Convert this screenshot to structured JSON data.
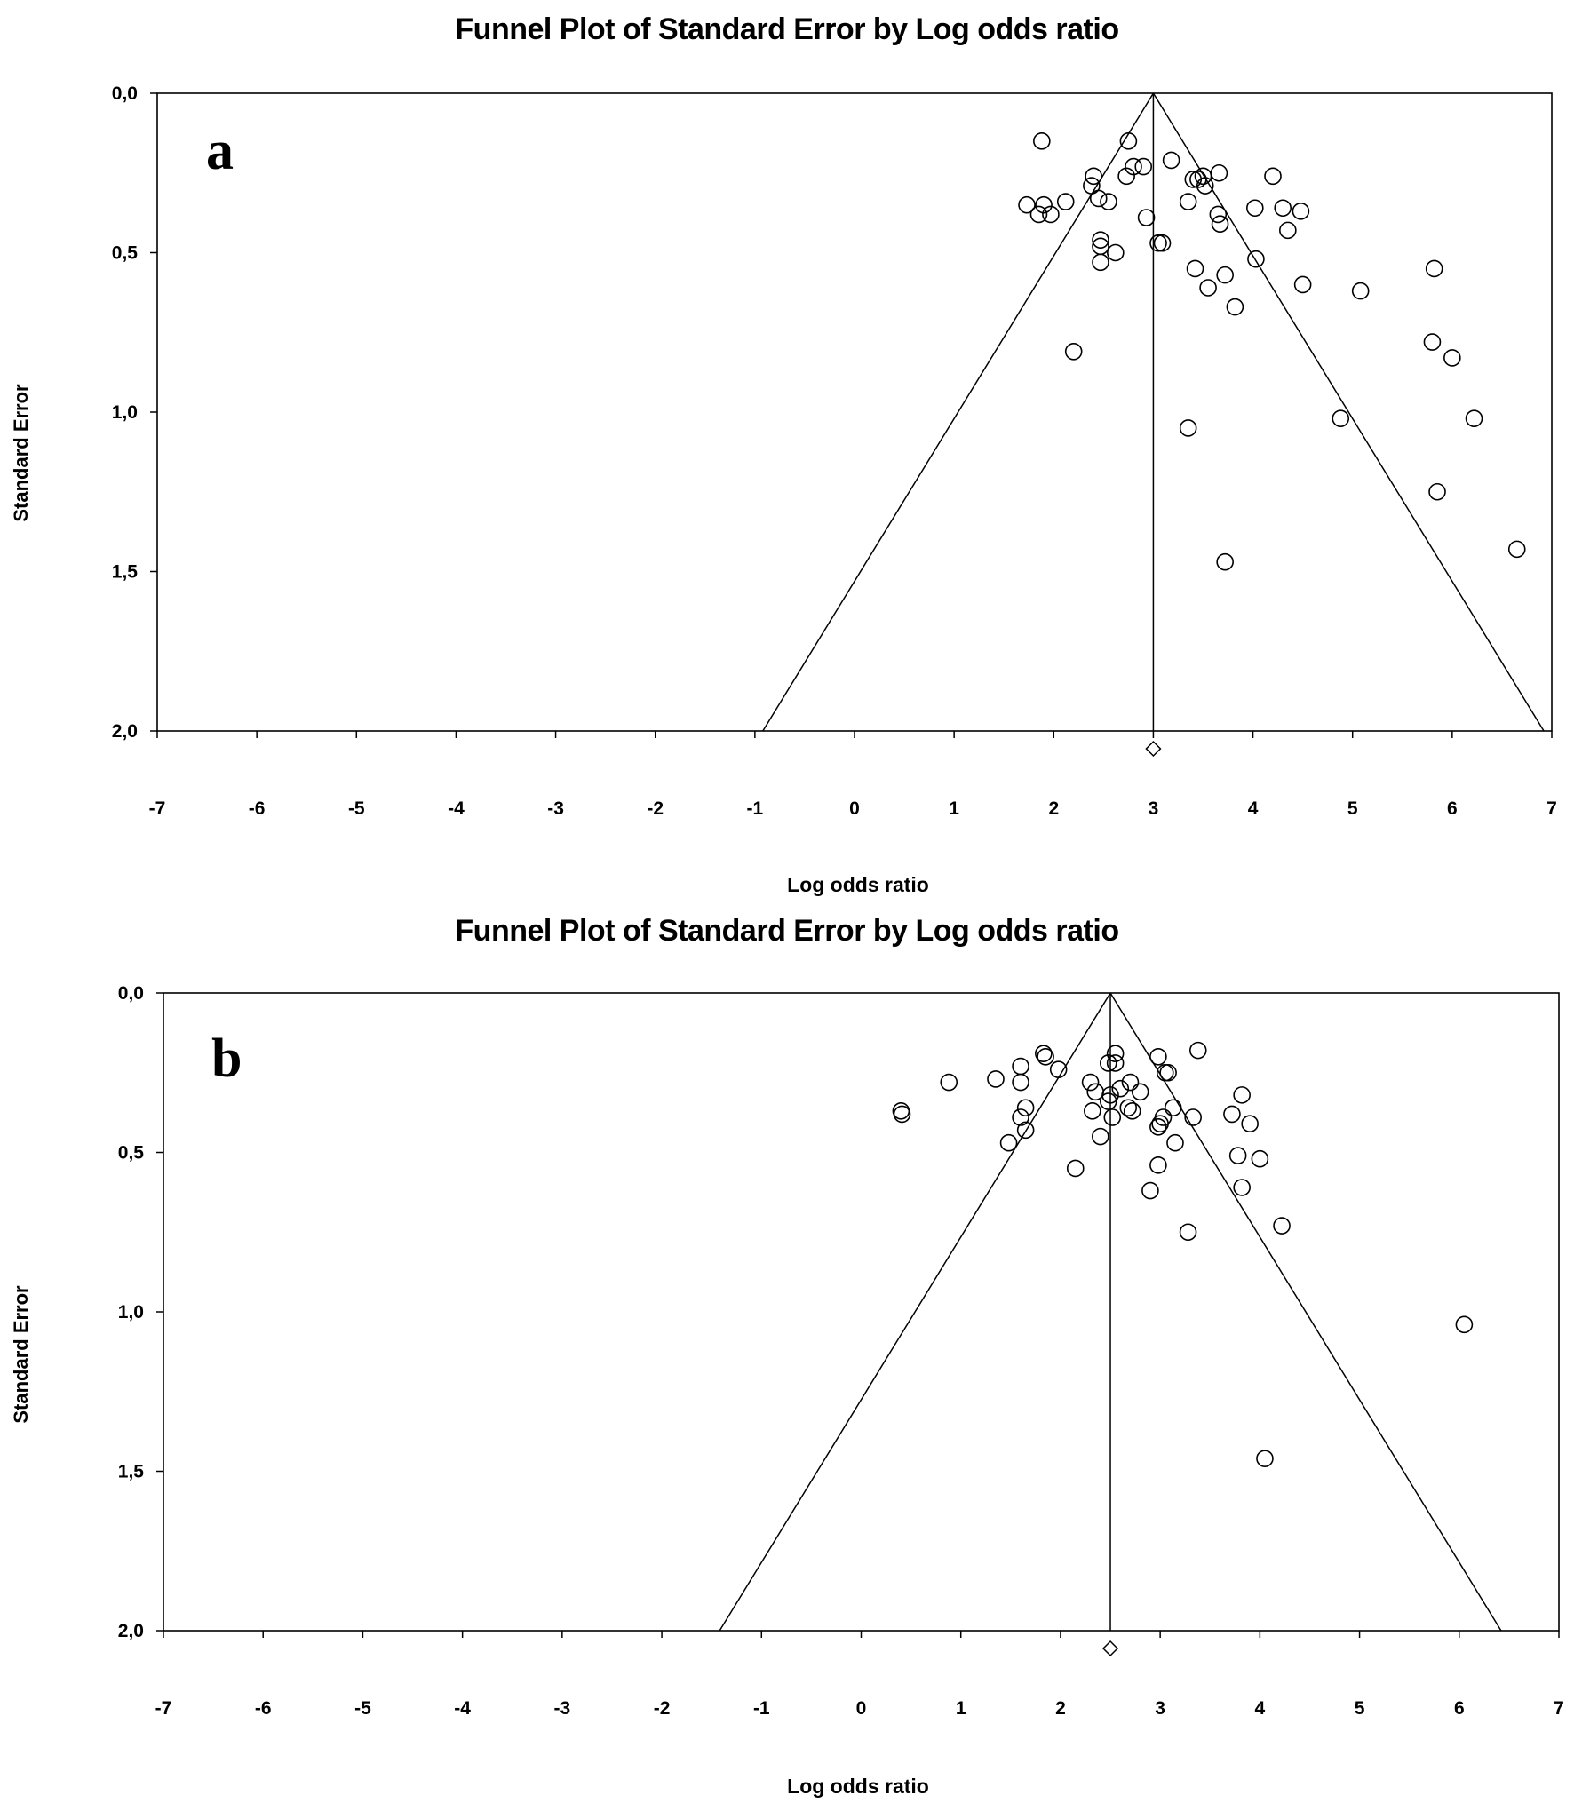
{
  "chart_data": [
    {
      "type": "scatter",
      "panel_label": "a",
      "title": "Funnel Plot of Standard Error by Log odds ratio",
      "xlabel": "Log odds ratio",
      "ylabel": "Standard Error",
      "xlim": [
        -7,
        7
      ],
      "ylim": [
        0,
        2
      ],
      "y_inverted": true,
      "xticks": [
        "-7",
        "-6",
        "-5",
        "-4",
        "-3",
        "-2",
        "-1",
        "0",
        "1",
        "2",
        "3",
        "4",
        "5",
        "6",
        "7"
      ],
      "yticks": [
        "0,0",
        "0,5",
        "1,0",
        "1,5",
        "2,0"
      ],
      "pooled_estimate": 3.0,
      "funnel_bottom_se": 2.0,
      "funnel_bottom_x": [
        -0.92,
        6.92
      ],
      "points": [
        {
          "x": 1.88,
          "y": 0.15
        },
        {
          "x": 2.75,
          "y": 0.15
        },
        {
          "x": 3.18,
          "y": 0.21
        },
        {
          "x": 2.4,
          "y": 0.26
        },
        {
          "x": 2.73,
          "y": 0.26
        },
        {
          "x": 2.8,
          "y": 0.23
        },
        {
          "x": 2.9,
          "y": 0.23
        },
        {
          "x": 3.4,
          "y": 0.27
        },
        {
          "x": 3.45,
          "y": 0.27
        },
        {
          "x": 3.5,
          "y": 0.26
        },
        {
          "x": 3.66,
          "y": 0.25
        },
        {
          "x": 4.2,
          "y": 0.26
        },
        {
          "x": 2.38,
          "y": 0.29
        },
        {
          "x": 2.45,
          "y": 0.33
        },
        {
          "x": 3.52,
          "y": 0.29
        },
        {
          "x": 1.73,
          "y": 0.35
        },
        {
          "x": 1.85,
          "y": 0.38
        },
        {
          "x": 1.9,
          "y": 0.35
        },
        {
          "x": 1.97,
          "y": 0.38
        },
        {
          "x": 2.12,
          "y": 0.34
        },
        {
          "x": 2.55,
          "y": 0.34
        },
        {
          "x": 2.93,
          "y": 0.39
        },
        {
          "x": 3.35,
          "y": 0.34
        },
        {
          "x": 3.65,
          "y": 0.38
        },
        {
          "x": 3.67,
          "y": 0.41
        },
        {
          "x": 4.02,
          "y": 0.36
        },
        {
          "x": 4.3,
          "y": 0.36
        },
        {
          "x": 4.48,
          "y": 0.37
        },
        {
          "x": 4.35,
          "y": 0.43
        },
        {
          "x": 2.47,
          "y": 0.46
        },
        {
          "x": 2.47,
          "y": 0.48
        },
        {
          "x": 2.62,
          "y": 0.5
        },
        {
          "x": 2.47,
          "y": 0.53
        },
        {
          "x": 3.05,
          "y": 0.47
        },
        {
          "x": 3.09,
          "y": 0.47
        },
        {
          "x": 4.03,
          "y": 0.52
        },
        {
          "x": 3.42,
          "y": 0.55
        },
        {
          "x": 3.72,
          "y": 0.57
        },
        {
          "x": 3.55,
          "y": 0.61
        },
        {
          "x": 3.82,
          "y": 0.67
        },
        {
          "x": 4.5,
          "y": 0.6
        },
        {
          "x": 5.08,
          "y": 0.62
        },
        {
          "x": 5.82,
          "y": 0.55
        },
        {
          "x": 2.2,
          "y": 0.81
        },
        {
          "x": 5.8,
          "y": 0.78
        },
        {
          "x": 6.0,
          "y": 0.83
        },
        {
          "x": 4.88,
          "y": 1.02
        },
        {
          "x": 6.22,
          "y": 1.02
        },
        {
          "x": 3.35,
          "y": 1.05
        },
        {
          "x": 5.85,
          "y": 1.25
        },
        {
          "x": 6.65,
          "y": 1.43
        },
        {
          "x": 3.72,
          "y": 1.47
        }
      ]
    },
    {
      "type": "scatter",
      "panel_label": "b",
      "title": "Funnel Plot of Standard Error by Log odds ratio",
      "xlabel": "Log odds ratio",
      "ylabel": "Standard Error",
      "xlim": [
        -7,
        7
      ],
      "ylim": [
        0,
        2
      ],
      "y_inverted": true,
      "xticks": [
        "-7",
        "-6",
        "-5",
        "-4",
        "-3",
        "-2",
        "-1",
        "0",
        "1",
        "2",
        "3",
        "4",
        "5",
        "6",
        "7"
      ],
      "yticks": [
        "0,0",
        "0,5",
        "1,0",
        "1,5",
        "2,0"
      ],
      "pooled_estimate": 2.5,
      "funnel_bottom_se": 2.0,
      "funnel_bottom_x": [
        -1.42,
        6.42
      ],
      "points": [
        {
          "x": 3.38,
          "y": 0.18
        },
        {
          "x": 1.83,
          "y": 0.19
        },
        {
          "x": 1.85,
          "y": 0.2
        },
        {
          "x": 2.55,
          "y": 0.19
        },
        {
          "x": 2.98,
          "y": 0.2
        },
        {
          "x": 2.48,
          "y": 0.22
        },
        {
          "x": 2.55,
          "y": 0.22
        },
        {
          "x": 1.6,
          "y": 0.23
        },
        {
          "x": 1.98,
          "y": 0.24
        },
        {
          "x": 3.05,
          "y": 0.25
        },
        {
          "x": 3.08,
          "y": 0.25
        },
        {
          "x": 1.35,
          "y": 0.27
        },
        {
          "x": 1.6,
          "y": 0.28
        },
        {
          "x": 0.88,
          "y": 0.28
        },
        {
          "x": 2.3,
          "y": 0.28
        },
        {
          "x": 2.7,
          "y": 0.28
        },
        {
          "x": 2.6,
          "y": 0.3
        },
        {
          "x": 2.35,
          "y": 0.31
        },
        {
          "x": 2.8,
          "y": 0.31
        },
        {
          "x": 2.5,
          "y": 0.32
        },
        {
          "x": 3.82,
          "y": 0.32
        },
        {
          "x": 2.48,
          "y": 0.34
        },
        {
          "x": 1.65,
          "y": 0.36
        },
        {
          "x": 2.68,
          "y": 0.36
        },
        {
          "x": 3.13,
          "y": 0.36
        },
        {
          "x": 0.4,
          "y": 0.37
        },
        {
          "x": 0.41,
          "y": 0.38
        },
        {
          "x": 2.32,
          "y": 0.37
        },
        {
          "x": 2.72,
          "y": 0.37
        },
        {
          "x": 3.72,
          "y": 0.38
        },
        {
          "x": 1.6,
          "y": 0.39
        },
        {
          "x": 2.52,
          "y": 0.39
        },
        {
          "x": 3.03,
          "y": 0.39
        },
        {
          "x": 3.33,
          "y": 0.39
        },
        {
          "x": 3.0,
          "y": 0.41
        },
        {
          "x": 2.98,
          "y": 0.42
        },
        {
          "x": 3.9,
          "y": 0.41
        },
        {
          "x": 1.65,
          "y": 0.43
        },
        {
          "x": 2.4,
          "y": 0.45
        },
        {
          "x": 1.48,
          "y": 0.47
        },
        {
          "x": 3.15,
          "y": 0.47
        },
        {
          "x": 3.78,
          "y": 0.51
        },
        {
          "x": 4.0,
          "y": 0.52
        },
        {
          "x": 2.98,
          "y": 0.54
        },
        {
          "x": 2.15,
          "y": 0.55
        },
        {
          "x": 3.82,
          "y": 0.61
        },
        {
          "x": 2.9,
          "y": 0.62
        },
        {
          "x": 4.22,
          "y": 0.73
        },
        {
          "x": 3.28,
          "y": 0.75
        },
        {
          "x": 6.05,
          "y": 1.04
        },
        {
          "x": 4.05,
          "y": 1.46
        }
      ]
    }
  ]
}
